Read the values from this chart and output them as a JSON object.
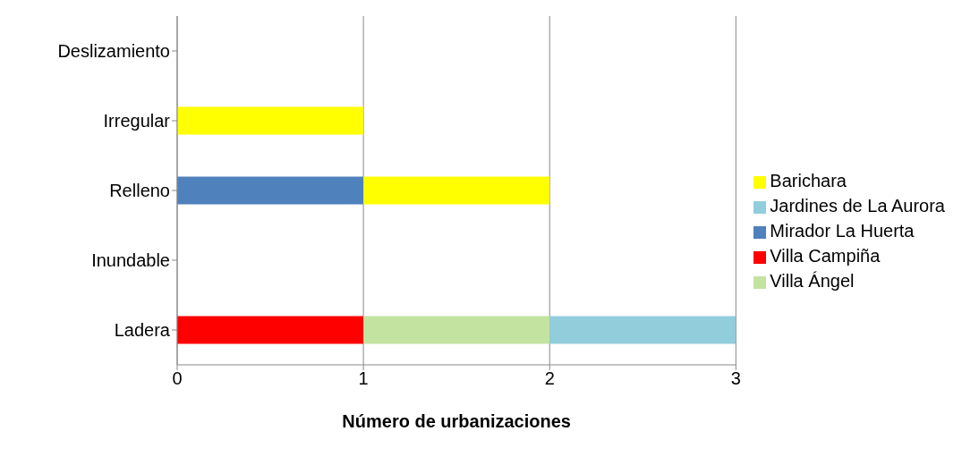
{
  "chart_data": {
    "type": "bar",
    "orientation": "horizontal",
    "stacked": true,
    "xlabel": "Número de urbanizaciones",
    "categories": [
      "Deslizamiento",
      "Irregular",
      "Relleno",
      "Inundable",
      "Ladera"
    ],
    "series": [
      {
        "name": "Mirador La Huerta",
        "color": "#4f81bd",
        "values": [
          0,
          0,
          1,
          0,
          0
        ]
      },
      {
        "name": "Villa Campiña",
        "color": "#ff0000",
        "values": [
          0,
          0,
          0,
          0,
          1
        ]
      },
      {
        "name": "Villa Ángel",
        "color": "#c3e3a0",
        "values": [
          0,
          0,
          0,
          0,
          1
        ]
      },
      {
        "name": "Barichara",
        "color": "#ffff00",
        "values": [
          0,
          1,
          1,
          0,
          0
        ]
      },
      {
        "name": "Jardines de La Aurora",
        "color": "#92cddc",
        "values": [
          0,
          0,
          0,
          0,
          1
        ]
      }
    ],
    "xlim": [
      0,
      3
    ],
    "xticks": [
      0,
      1,
      2,
      3
    ],
    "grid": "x",
    "legend": "right"
  }
}
